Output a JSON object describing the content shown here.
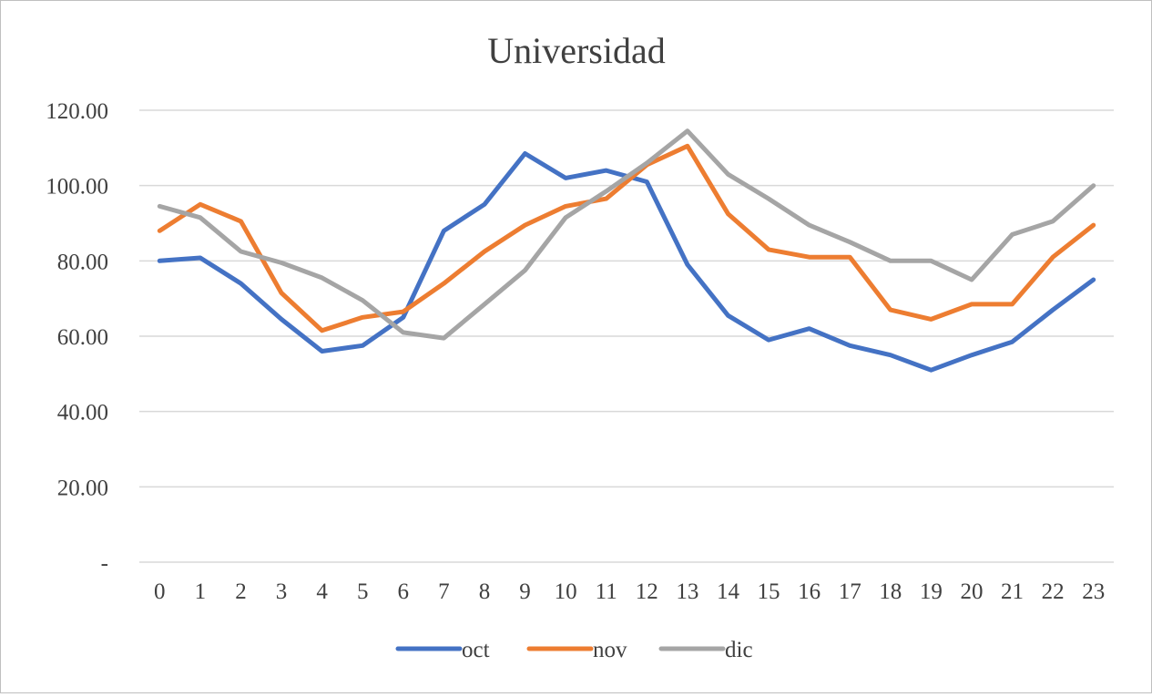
{
  "chart_data": {
    "type": "line",
    "title": "Universidad",
    "categories": [
      "0",
      "1",
      "2",
      "3",
      "4",
      "5",
      "6",
      "7",
      "8",
      "9",
      "10",
      "11",
      "12",
      "13",
      "14",
      "15",
      "16",
      "17",
      "18",
      "19",
      "20",
      "21",
      "22",
      "23"
    ],
    "ylim": [
      0,
      120
    ],
    "yticks": [
      {
        "value": 0,
        "label": "-"
      },
      {
        "value": 20,
        "label": "20.00"
      },
      {
        "value": 40,
        "label": "40.00"
      },
      {
        "value": 60,
        "label": "60.00"
      },
      {
        "value": 80,
        "label": "80.00"
      },
      {
        "value": 100,
        "label": "100.00"
      },
      {
        "value": 120,
        "label": "120.00"
      }
    ],
    "grid": true,
    "legend_position": "bottom",
    "xlabel": "",
    "ylabel": "",
    "series": [
      {
        "name": "oct",
        "color": "#4472c4",
        "values": [
          80,
          80.8,
          74,
          64.5,
          56,
          57.5,
          65,
          88,
          95,
          108.5,
          102,
          104,
          101,
          79,
          65.5,
          59,
          62,
          57.5,
          55,
          51,
          55,
          58.5,
          67,
          75
        ]
      },
      {
        "name": "nov",
        "color": "#ed7d31",
        "values": [
          88,
          95,
          90.5,
          71.5,
          61.5,
          65,
          66.5,
          74,
          82.5,
          89.5,
          94.5,
          96.5,
          105.5,
          110.5,
          92.5,
          83,
          81,
          81,
          67,
          64.5,
          68.5,
          68.5,
          81,
          89.5
        ]
      },
      {
        "name": "dic",
        "color": "#a5a5a5",
        "values": [
          94.5,
          91.5,
          82.5,
          79.5,
          75.5,
          69.5,
          61,
          59.5,
          68.5,
          77.5,
          91.5,
          98.5,
          106,
          114.5,
          103,
          96.5,
          89.5,
          85,
          80,
          80,
          75,
          87,
          90.5,
          100
        ]
      }
    ]
  }
}
